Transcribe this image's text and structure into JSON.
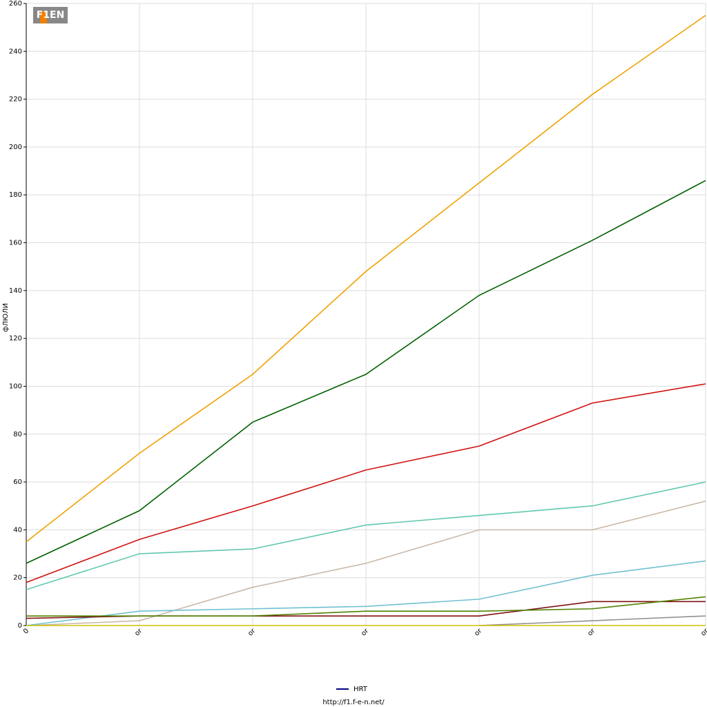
{
  "logo": "F1EN",
  "chart_data": {
    "type": "line",
    "ylabel": "фЛЮЛИ",
    "categories": [
      "0",
      "or",
      "or",
      "or",
      "or",
      "or",
      "or"
    ],
    "ylim": [
      0,
      260
    ],
    "yticks": [
      0,
      20,
      40,
      60,
      80,
      100,
      120,
      140,
      160,
      180,
      200,
      220,
      240,
      260
    ],
    "grid": true,
    "series": [
      {
        "color": "#f0a000",
        "values": [
          35,
          72,
          105,
          148,
          185,
          222,
          255
        ]
      },
      {
        "color": "#006000",
        "values": [
          26,
          48,
          85,
          105,
          138,
          161,
          186
        ]
      },
      {
        "color": "#d01010",
        "values": [
          18,
          36,
          50,
          65,
          75,
          93,
          101
        ]
      },
      {
        "color": "#60c8b0",
        "values": [
          15,
          30,
          32,
          42,
          46,
          50,
          60
        ]
      },
      {
        "color": "#c8b8a8",
        "values": [
          0,
          2,
          16,
          26,
          40,
          40,
          52
        ]
      },
      {
        "color": "#70c0d0",
        "values": [
          0,
          6,
          7,
          8,
          11,
          21,
          27
        ]
      },
      {
        "color": "#801010",
        "values": [
          3,
          4,
          4,
          4,
          4,
          10,
          10
        ]
      },
      {
        "color": "#508000",
        "values": [
          4,
          4,
          4,
          6,
          6,
          7,
          12
        ]
      },
      {
        "color": "#909090",
        "values": [
          null,
          null,
          null,
          null,
          0,
          2,
          4
        ]
      },
      {
        "color": "#d0c000",
        "values": [
          0,
          0,
          0,
          0,
          0,
          0,
          0
        ]
      }
    ],
    "legend": {
      "name": "HRT",
      "color": "#000080"
    },
    "footer": "http://f1.f-e-n.net/"
  }
}
